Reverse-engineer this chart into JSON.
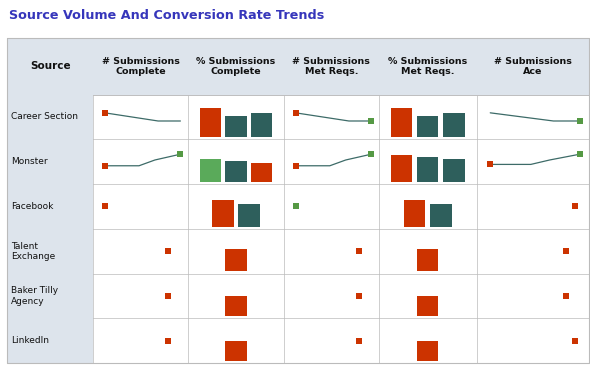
{
  "title": "Source Volume And Conversion Rate Trends",
  "title_color": "#3636bb",
  "bg_color": "#ffffff",
  "header_bg": "#dde4ec",
  "grid_color": "#bbbbbb",
  "sparkline_color": "#3d6b68",
  "dot_red": "#cc3300",
  "dot_green": "#559944",
  "bar_orange": "#cc3300",
  "bar_teal": "#2e5f5c",
  "bar_green": "#5aaa5a",
  "sources": [
    "Career Section",
    "Monster",
    "Facebook",
    "Talent\nExchange",
    "Baker Tilly\nAgency",
    "LinkedIn"
  ],
  "col_headers": [
    "# Submissions\nComplete",
    "% Submissions\nComplete",
    "# Submissions\nMet Reqs.",
    "% Submissions\nMet Reqs.",
    "# Submissions\nAce"
  ],
  "sparkline_data": {
    "c0": {
      "Career Section": {
        "x": [
          0.05,
          0.72,
          1.0
        ],
        "y": [
          0.62,
          0.38,
          0.38
        ],
        "ds": "red",
        "de": null
      },
      "Monster": {
        "x": [
          0.05,
          0.48,
          0.68,
          1.0
        ],
        "y": [
          0.38,
          0.38,
          0.55,
          0.72
        ],
        "ds": "red",
        "de": "green"
      },
      "Facebook": {
        "x": [
          0.05,
          0.05
        ],
        "y": [
          0.5,
          0.5
        ],
        "ds": "red",
        "de": null
      },
      "Talent\nExchange": {
        "x": [
          0.85,
          0.85
        ],
        "y": [
          0.5,
          0.5
        ],
        "ds": null,
        "de": "red"
      },
      "Baker Tilly\nAgency": {
        "x": [
          0.85,
          0.85
        ],
        "y": [
          0.5,
          0.5
        ],
        "ds": null,
        "de": "red"
      },
      "LinkedIn": {
        "x": [
          0.85,
          0.85
        ],
        "y": [
          0.5,
          0.5
        ],
        "ds": null,
        "de": "red"
      }
    },
    "c2": {
      "Career Section": {
        "x": [
          0.05,
          0.72,
          1.0
        ],
        "y": [
          0.62,
          0.38,
          0.38
        ],
        "ds": "red",
        "de": "green"
      },
      "Monster": {
        "x": [
          0.05,
          0.48,
          0.68,
          1.0
        ],
        "y": [
          0.38,
          0.38,
          0.55,
          0.72
        ],
        "ds": "red",
        "de": "green"
      },
      "Facebook": {
        "x": [
          0.05,
          0.05
        ],
        "y": [
          0.5,
          0.5
        ],
        "ds": null,
        "de": "green"
      },
      "Talent\nExchange": {
        "x": [
          0.85,
          0.85
        ],
        "y": [
          0.5,
          0.5
        ],
        "ds": null,
        "de": "red"
      },
      "Baker Tilly\nAgency": {
        "x": [
          0.85,
          0.85
        ],
        "y": [
          0.5,
          0.5
        ],
        "ds": null,
        "de": "red"
      },
      "LinkedIn": {
        "x": [
          0.85,
          0.85
        ],
        "y": [
          0.5,
          0.5
        ],
        "ds": null,
        "de": "red"
      }
    },
    "c4": {
      "Career Section": {
        "x": [
          0.05,
          0.72,
          1.0
        ],
        "y": [
          0.62,
          0.38,
          0.38
        ],
        "ds": null,
        "de": "green"
      },
      "Monster": {
        "x": [
          0.05,
          0.48,
          0.68,
          1.0
        ],
        "y": [
          0.42,
          0.42,
          0.55,
          0.72
        ],
        "ds": "red",
        "de": "green"
      },
      "Facebook": {
        "x": [
          0.95,
          0.95
        ],
        "y": [
          0.5,
          0.5
        ],
        "ds": null,
        "de": "red"
      },
      "Talent\nExchange": {
        "x": [
          0.85,
          0.85
        ],
        "y": [
          0.5,
          0.5
        ],
        "ds": null,
        "de": "red"
      },
      "Baker Tilly\nAgency": {
        "x": [
          0.85,
          0.85
        ],
        "y": [
          0.5,
          0.5
        ],
        "ds": null,
        "de": "red"
      },
      "LinkedIn": {
        "x": [
          0.95,
          0.95
        ],
        "y": [
          0.5,
          0.5
        ],
        "ds": null,
        "de": "red"
      }
    }
  },
  "bar_data": {
    "c1": {
      "Career Section": [
        [
          "o",
          0.8
        ],
        [
          "t",
          0.58
        ],
        [
          "t",
          0.65
        ]
      ],
      "Monster": [
        [
          "g",
          0.62
        ],
        [
          "t",
          0.58
        ],
        [
          "o",
          0.52
        ]
      ],
      "Facebook": [
        [
          "o",
          0.72
        ],
        [
          "t",
          0.62
        ]
      ],
      "Talent\nExchange": [
        [
          "o",
          0.6
        ]
      ],
      "Baker Tilly\nAgency": [
        [
          "o",
          0.55
        ]
      ],
      "LinkedIn": [
        [
          "o",
          0.55
        ]
      ]
    },
    "c3": {
      "Career Section": [
        [
          "o",
          0.8
        ],
        [
          "t",
          0.58
        ],
        [
          "t",
          0.65
        ]
      ],
      "Monster": [
        [
          "o",
          0.72
        ],
        [
          "t",
          0.67
        ],
        [
          "t",
          0.62
        ]
      ],
      "Facebook": [
        [
          "o",
          0.72
        ],
        [
          "t",
          0.62
        ]
      ],
      "Talent\nExchange": [
        [
          "o",
          0.6
        ]
      ],
      "Baker Tilly\nAgency": [
        [
          "o",
          0.55
        ]
      ],
      "LinkedIn": [
        [
          "o",
          0.55
        ]
      ]
    }
  }
}
